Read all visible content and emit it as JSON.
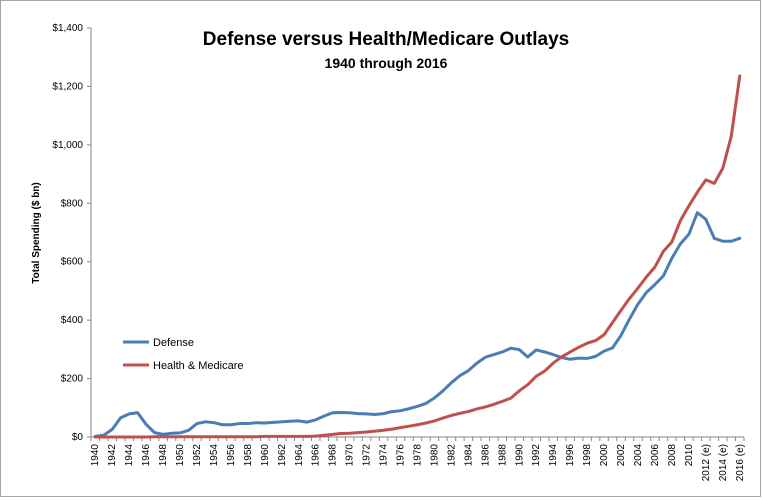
{
  "chart_data": {
    "type": "line",
    "title": "Defense versus Health/Medicare Outlays",
    "subtitle": "1940 through 2016",
    "xlabel": "",
    "ylabel": "Total Spending ($ bn)",
    "ylim": [
      0,
      1400
    ],
    "yticks": [
      0,
      200,
      400,
      600,
      800,
      1000,
      1200,
      1400
    ],
    "ytick_labels": [
      "$0",
      "$200",
      "$400",
      "$600",
      "$800",
      "$1,000",
      "$1,200",
      "$1,400"
    ],
    "xtick_labels": [
      "1940",
      "1942",
      "1944",
      "1946",
      "1948",
      "1950",
      "1952",
      "1954",
      "1956",
      "1958",
      "1960",
      "1962",
      "1964",
      "1966",
      "1968",
      "1970",
      "1972",
      "1974",
      "1976",
      "1978",
      "1980",
      "1982",
      "1984",
      "1986",
      "1988",
      "1990",
      "1992",
      "1994",
      "1996",
      "1998",
      "2000",
      "2002",
      "2004",
      "2006",
      "2008",
      "2010",
      "2012 (e)",
      "2014 (e)",
      "2016 (e)"
    ],
    "x": [
      1940,
      1941,
      1942,
      1943,
      1944,
      1945,
      1946,
      1947,
      1948,
      1949,
      1950,
      1951,
      1952,
      1953,
      1954,
      1955,
      1956,
      1957,
      1958,
      1959,
      1960,
      1961,
      1962,
      1963,
      1964,
      1965,
      1966,
      1967,
      1968,
      1969,
      1970,
      1971,
      1972,
      1973,
      1974,
      1975,
      1976,
      1977,
      1978,
      1979,
      1980,
      1981,
      1982,
      1983,
      1984,
      1985,
      1986,
      1987,
      1988,
      1989,
      1990,
      1991,
      1992,
      1993,
      1994,
      1995,
      1996,
      1997,
      1998,
      1999,
      2000,
      2001,
      2002,
      2003,
      2004,
      2005,
      2006,
      2007,
      2008,
      2009,
      2010,
      2011,
      2012,
      2013,
      2014,
      2015,
      2016
    ],
    "legend_position": "middle-left",
    "series": [
      {
        "name": "Defense",
        "color": "#4a7db5",
        "values": [
          2,
          6,
          26,
          66,
          79,
          83,
          43,
          15,
          9,
          13,
          14,
          23,
          46,
          52,
          49,
          42,
          42,
          46,
          46,
          49,
          48,
          50,
          52,
          54,
          55,
          51,
          59,
          72,
          83,
          84,
          83,
          80,
          79,
          77,
          80,
          87,
          90,
          97,
          105,
          115,
          134,
          158,
          186,
          210,
          227,
          253,
          273,
          282,
          291,
          304,
          299,
          274,
          298,
          291,
          282,
          272,
          266,
          270,
          269,
          276,
          294,
          305,
          348,
          404,
          455,
          495,
          522,
          552,
          612,
          661,
          694,
          768,
          745,
          680,
          670,
          670,
          680
        ]
      },
      {
        "name": "Health & Medicare",
        "color": "#c0504d",
        "values": [
          0,
          0,
          0,
          0,
          0,
          0,
          0,
          1,
          1,
          1,
          1,
          1,
          1,
          1,
          1,
          1,
          1,
          1,
          1,
          1,
          2,
          2,
          2,
          2,
          2,
          2,
          3,
          6,
          9,
          12,
          13,
          15,
          17,
          20,
          23,
          27,
          32,
          37,
          42,
          48,
          55,
          65,
          74,
          81,
          87,
          96,
          103,
          112,
          122,
          133,
          158,
          179,
          208,
          226,
          253,
          274,
          291,
          307,
          321,
          330,
          350,
          392,
          434,
          474,
          510,
          548,
          582,
          636,
          668,
          741,
          791,
          838,
          880,
          868,
          920,
          1030,
          1236
        ]
      }
    ]
  }
}
